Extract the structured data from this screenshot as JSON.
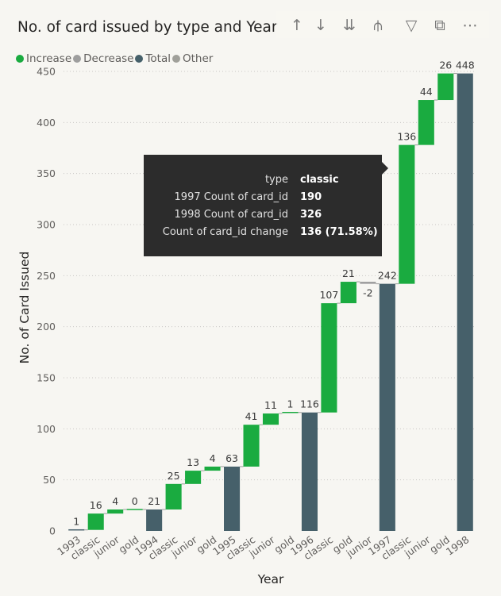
{
  "visual": {
    "title": "No. of card issued by type and Year"
  },
  "toolbar": [
    {
      "name": "drill-up-icon",
      "glyph": "↑"
    },
    {
      "name": "drill-down-icon",
      "glyph": "↓"
    },
    {
      "name": "expand-next-level-icon",
      "glyph": "⇊"
    },
    {
      "name": "expand-hierarchy-icon",
      "glyph": "⫛"
    },
    {
      "name": "filter-icon",
      "glyph": "▽"
    },
    {
      "name": "focus-mode-icon",
      "glyph": "⧉"
    },
    {
      "name": "more-options-icon",
      "glyph": "⋯"
    }
  ],
  "legend": [
    {
      "label": "Increase",
      "color": "#1aab40"
    },
    {
      "label": "Decrease",
      "color": "#9e9e9e"
    },
    {
      "label": "Total",
      "color": "#46606a"
    },
    {
      "label": "Other",
      "color": "#a0a09a"
    }
  ],
  "tooltip": {
    "rows": [
      {
        "key": "type",
        "value": "classic"
      },
      {
        "key": "1997 Count of card_id",
        "value": "190"
      },
      {
        "key": "1998 Count of card_id",
        "value": "326"
      },
      {
        "key": "Count of card_id change",
        "value": "136 (71.58%)"
      }
    ]
  },
  "chart_data": {
    "type": "waterfall",
    "xlabel": "Year",
    "ylabel": "No. of Card Issued",
    "ylim": [
      0,
      450
    ],
    "yticks": [
      0,
      50,
      100,
      150,
      200,
      250,
      300,
      350,
      400,
      450
    ],
    "grid": true,
    "legend_position": "top-left",
    "colors": {
      "increase": "#1aab40",
      "decrease": "#9e9e9e",
      "total": "#46606a",
      "connector": "#9a9a9a"
    },
    "bars": [
      {
        "category": "1993",
        "kind": "total",
        "start": 0,
        "end": 1,
        "label": "1"
      },
      {
        "category": "classic",
        "kind": "increase",
        "start": 1,
        "end": 17,
        "label": "16"
      },
      {
        "category": "junior",
        "kind": "increase",
        "start": 17,
        "end": 21,
        "label": "4"
      },
      {
        "category": "gold",
        "kind": "increase",
        "start": 21,
        "end": 21,
        "label": "0"
      },
      {
        "category": "1994",
        "kind": "total",
        "start": 0,
        "end": 21,
        "label": "21"
      },
      {
        "category": "classic",
        "kind": "increase",
        "start": 21,
        "end": 46,
        "label": "25"
      },
      {
        "category": "junior",
        "kind": "increase",
        "start": 46,
        "end": 59,
        "label": "13"
      },
      {
        "category": "gold",
        "kind": "increase",
        "start": 59,
        "end": 63,
        "label": "4"
      },
      {
        "category": "1995",
        "kind": "total",
        "start": 0,
        "end": 63,
        "label": "63"
      },
      {
        "category": "classic",
        "kind": "increase",
        "start": 63,
        "end": 104,
        "label": "41"
      },
      {
        "category": "junior",
        "kind": "increase",
        "start": 104,
        "end": 115,
        "label": "11"
      },
      {
        "category": "gold",
        "kind": "increase",
        "start": 115,
        "end": 116,
        "label": "1"
      },
      {
        "category": "1996",
        "kind": "total",
        "start": 0,
        "end": 116,
        "label": "116"
      },
      {
        "category": "classic",
        "kind": "increase",
        "start": 116,
        "end": 223,
        "label": "107"
      },
      {
        "category": "gold",
        "kind": "increase",
        "start": 223,
        "end": 244,
        "label": "21"
      },
      {
        "category": "junior",
        "kind": "decrease",
        "start": 244,
        "end": 242,
        "label": "-2"
      },
      {
        "category": "1997",
        "kind": "total",
        "start": 0,
        "end": 242,
        "label": "242"
      },
      {
        "category": "classic",
        "kind": "increase",
        "start": 242,
        "end": 378,
        "label": "136"
      },
      {
        "category": "junior",
        "kind": "increase",
        "start": 378,
        "end": 422,
        "label": "44"
      },
      {
        "category": "gold",
        "kind": "increase",
        "start": 422,
        "end": 448,
        "label": "26"
      },
      {
        "category": "1998",
        "kind": "total",
        "start": 0,
        "end": 448,
        "label": "448"
      }
    ]
  }
}
